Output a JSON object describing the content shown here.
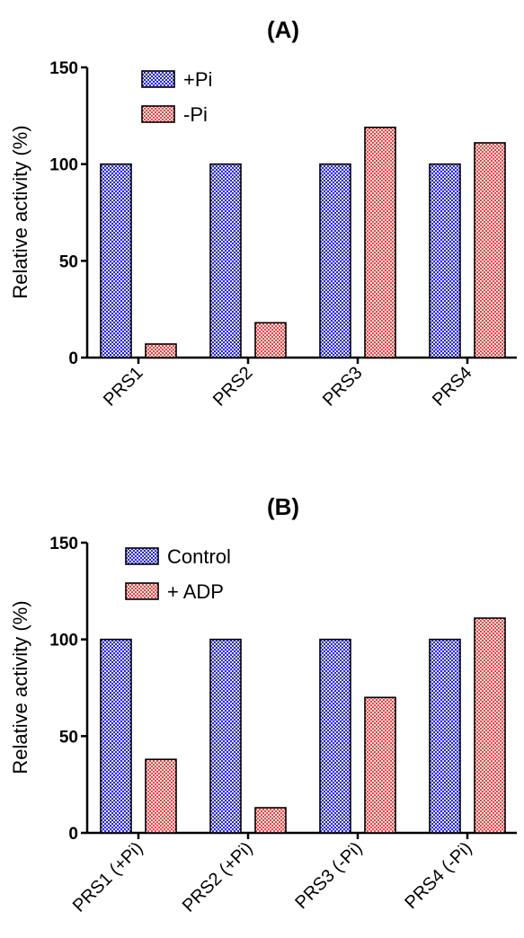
{
  "chart_data": [
    {
      "type": "bar",
      "title": "(A)",
      "ylabel": "Relative activity (%)",
      "xlabel": "",
      "ylim": [
        0,
        150
      ],
      "yticks": [
        0,
        50,
        100,
        150
      ],
      "categories": [
        "PRS1",
        "PRS2",
        "PRS3",
        "PRS4"
      ],
      "series": [
        {
          "name": "+Pi",
          "values": [
            100,
            100,
            100,
            100
          ],
          "color": "#3b3bd6"
        },
        {
          "name": "-Pi",
          "values": [
            7,
            18,
            119,
            111
          ],
          "color": "#e86a6a"
        }
      ],
      "legend": "top-left",
      "grid": false
    },
    {
      "type": "bar",
      "title": "(B)",
      "ylabel": "Relative activity (%)",
      "xlabel": "",
      "ylim": [
        0,
        150
      ],
      "yticks": [
        0,
        50,
        100,
        150
      ],
      "categories": [
        "PRS1 (+Pi)",
        "PRS2 (+Pi)",
        "PRS3 (-Pi)",
        "PRS4 (-Pi)"
      ],
      "series": [
        {
          "name": "Control",
          "values": [
            100,
            100,
            100,
            100
          ],
          "color": "#3b3bd6"
        },
        {
          "name": "+ ADP",
          "values": [
            38,
            13,
            70,
            111
          ],
          "color": "#e86a6a"
        }
      ],
      "legend": "top-left",
      "grid": false
    }
  ]
}
